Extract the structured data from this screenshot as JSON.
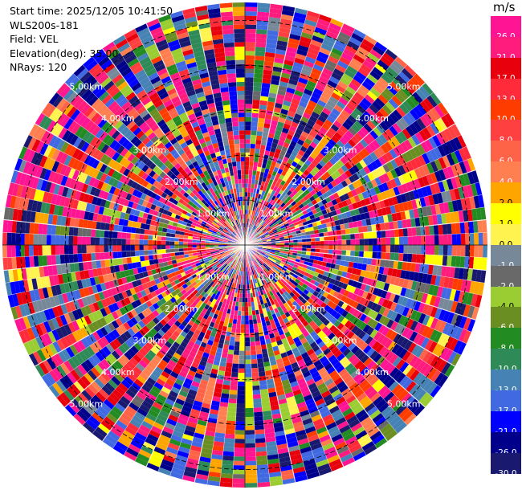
{
  "header": {
    "start_time": "Start time: 2025/12/05 10:41:50",
    "instrument": "WLS200s-181",
    "field": "Field: VEL",
    "elevation": "Elevation(deg): 35.00",
    "nrays": "NRays: 120"
  },
  "chart_data": {
    "type": "heatmap",
    "subtype": "polar-ppi",
    "field": "VEL",
    "unit": "m/s",
    "n_rays": 120,
    "n_gates": 55,
    "max_range_km": 5.4,
    "range_rings_km": [
      1.0,
      2.0,
      3.0,
      4.0,
      5.0
    ],
    "ring_labels": [
      "1.00km",
      "2.00km",
      "3.00km",
      "4.00km",
      "5.00km"
    ],
    "colorbar": {
      "unit_label": "m/s",
      "ticks": [
        "26.0",
        "21.0",
        "17.0",
        "13.0",
        "10.0",
        "8.0",
        "6.0",
        "4.0",
        "2.0",
        "1.0",
        "0.0",
        "-1.0",
        "-2.0",
        "-4.0",
        "-6.0",
        "-8.0",
        "-10.0",
        "-13.0",
        "-17.0",
        "-21.0",
        "-26.0",
        "-30.0"
      ],
      "levels": [
        30,
        26,
        21,
        17,
        13,
        10,
        8,
        6,
        4,
        2,
        1,
        0,
        -1,
        -2,
        -4,
        -6,
        -8,
        -10,
        -13,
        -17,
        -21,
        -26,
        -30
      ],
      "colors": [
        "#ff1493",
        "#ff1c7c",
        "#e8000d",
        "#ff2a3a",
        "#ff3c00",
        "#ff4040",
        "#ff6347",
        "#ff7f50",
        "#ffa500",
        "#ffff00",
        "#fff44f",
        "#778899",
        "#696969",
        "#9acd32",
        "#6b8e23",
        "#228b22",
        "#2e8b57",
        "#4682b4",
        "#4169e1",
        "#0000ff",
        "#00008b",
        "#191970"
      ]
    }
  }
}
